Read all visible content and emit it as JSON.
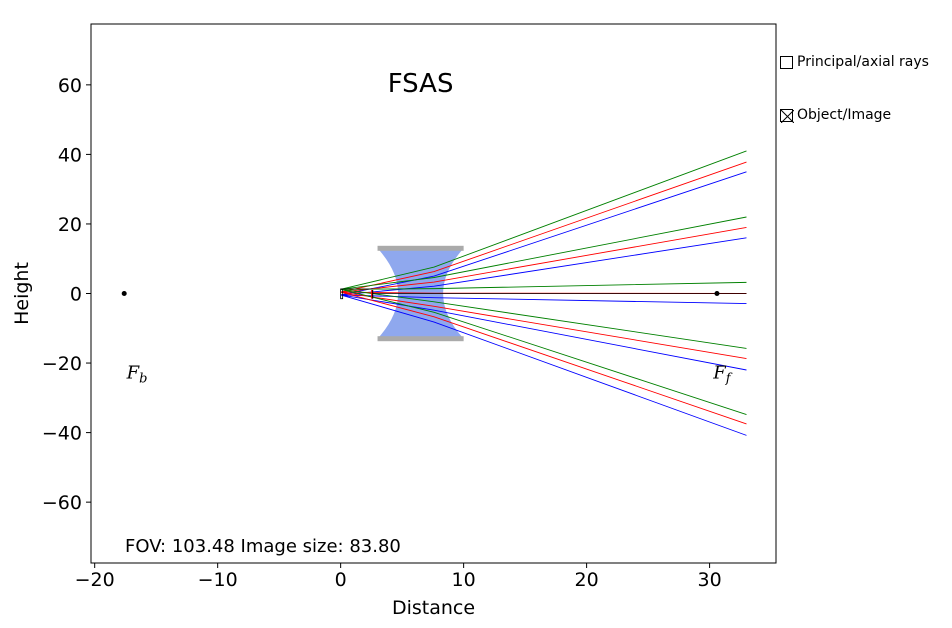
{
  "plot": {
    "title": "FSAS",
    "xlabel": "Distance",
    "ylabel": "Height",
    "info": "FOV: 103.48 Image size: 83.80",
    "xlim": [
      -20.3,
      35.4
    ],
    "ylim": [
      -77.5,
      77.5
    ],
    "xticks": [
      -20,
      -10,
      0,
      10,
      20,
      30
    ],
    "xtick_labels": [
      "−20",
      "−10",
      "0",
      "10",
      "20",
      "30"
    ],
    "yticks": [
      -60,
      -40,
      -20,
      0,
      20,
      40,
      60
    ],
    "ytick_labels": [
      "−60",
      "−40",
      "−20",
      "0",
      "20",
      "40",
      "60"
    ],
    "focal_points": [
      {
        "x": -17.6,
        "y": 0,
        "label": "F",
        "sub": "b",
        "label_x": -17.4,
        "label_y": -24.5
      },
      {
        "x": 30.6,
        "y": 0,
        "label": "F",
        "sub": "f",
        "label_x": 30.3,
        "label_y": -24.5
      }
    ],
    "lens": {
      "x_start": 3.0,
      "x_end": 10.0,
      "half_height": 13,
      "color": "#8fa8ee",
      "edge_color": "#aaaaaa"
    },
    "rays": [
      {
        "color": "#008000",
        "points": [
          [
            0,
            1.2
          ],
          [
            7.6,
            7.6
          ],
          [
            33,
            41
          ]
        ]
      },
      {
        "color": "#ff0000",
        "points": [
          [
            0,
            0.4
          ],
          [
            7.6,
            6.3
          ],
          [
            33,
            37.8
          ]
        ]
      },
      {
        "color": "#0000ff",
        "points": [
          [
            0,
            -0.4
          ],
          [
            7.6,
            5.0
          ],
          [
            33,
            35
          ]
        ]
      },
      {
        "color": "#008000",
        "points": [
          [
            0,
            1.2
          ],
          [
            7.6,
            4.6
          ],
          [
            33,
            22
          ]
        ]
      },
      {
        "color": "#ff0000",
        "points": [
          [
            0,
            0.4
          ],
          [
            7.6,
            3.3
          ],
          [
            33,
            19
          ]
        ]
      },
      {
        "color": "#0000ff",
        "points": [
          [
            0,
            -0.4
          ],
          [
            7.6,
            2.1
          ],
          [
            33,
            16
          ]
        ]
      },
      {
        "color": "#008000",
        "points": [
          [
            0,
            1.2
          ],
          [
            7.6,
            1.4
          ],
          [
            33,
            3.2
          ]
        ]
      },
      {
        "color": "#ff0000",
        "points": [
          [
            0,
            0.4
          ],
          [
            7.6,
            0.1
          ],
          [
            33,
            0
          ]
        ]
      },
      {
        "color": "#0000ff",
        "points": [
          [
            0,
            -0.4
          ],
          [
            7.6,
            -1.2
          ],
          [
            33,
            -2.9
          ]
        ]
      },
      {
        "color": "#008000",
        "points": [
          [
            0,
            1.2
          ],
          [
            7.6,
            -2.4
          ],
          [
            33,
            -15.8
          ]
        ]
      },
      {
        "color": "#ff0000",
        "points": [
          [
            0,
            0.4
          ],
          [
            7.6,
            -3.7
          ],
          [
            33,
            -18.7
          ]
        ]
      },
      {
        "color": "#0000ff",
        "points": [
          [
            0,
            -0.4
          ],
          [
            7.6,
            -4.8
          ],
          [
            33,
            -22
          ]
        ]
      },
      {
        "color": "#008000",
        "points": [
          [
            0,
            1.2
          ],
          [
            7.6,
            -5.4
          ],
          [
            33,
            -34.8
          ]
        ]
      },
      {
        "color": "#ff0000",
        "points": [
          [
            0,
            0.4
          ],
          [
            7.6,
            -6.7
          ],
          [
            33,
            -37.5
          ]
        ]
      },
      {
        "color": "#0000ff",
        "points": [
          [
            0,
            -0.4
          ],
          [
            7.6,
            -8.2
          ],
          [
            33,
            -40.8
          ]
        ]
      }
    ],
    "object": {
      "x": 0,
      "y_top": 1.3,
      "y_bottom": -1.5
    },
    "image": {
      "x": 2.6,
      "y_top": 1.0,
      "y_bottom": -1.5
    }
  },
  "controls": {
    "principal_rays": {
      "label": "Principal/axial rays",
      "checked": false
    },
    "object_image": {
      "label": "Object/Image",
      "checked": true
    }
  }
}
